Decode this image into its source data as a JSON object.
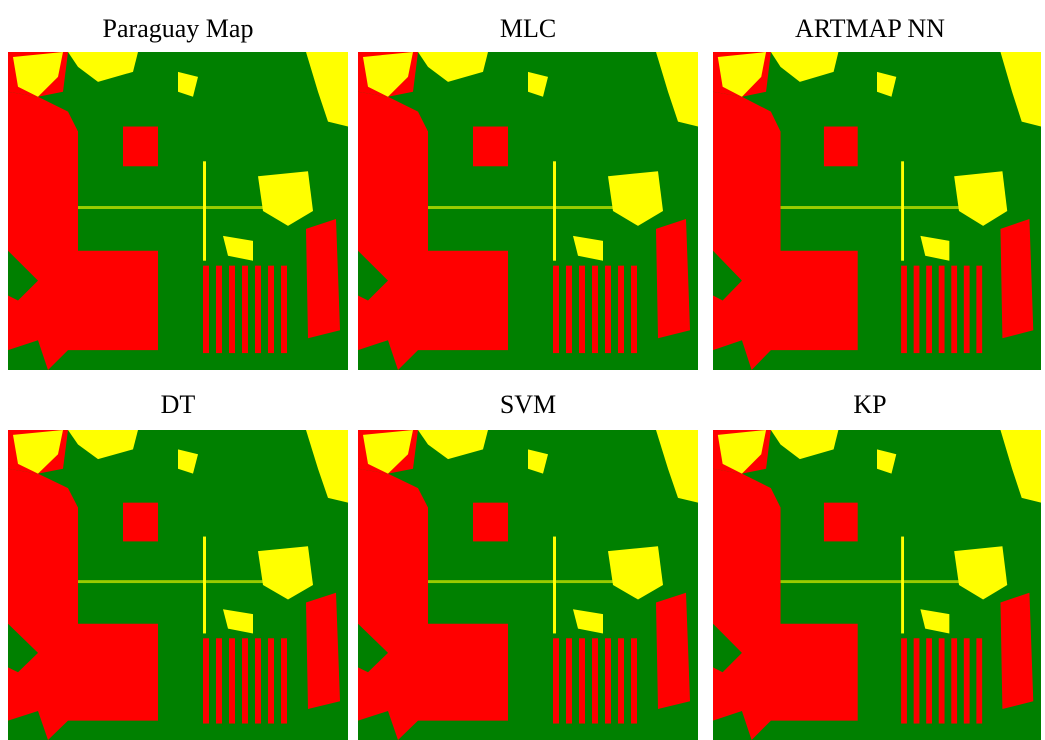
{
  "panels": [
    {
      "title": "Paraguay Map"
    },
    {
      "title": "MLC"
    },
    {
      "title": "ARTMAP NN"
    },
    {
      "title": "DT"
    },
    {
      "title": "SVM"
    },
    {
      "title": "KP"
    }
  ]
}
